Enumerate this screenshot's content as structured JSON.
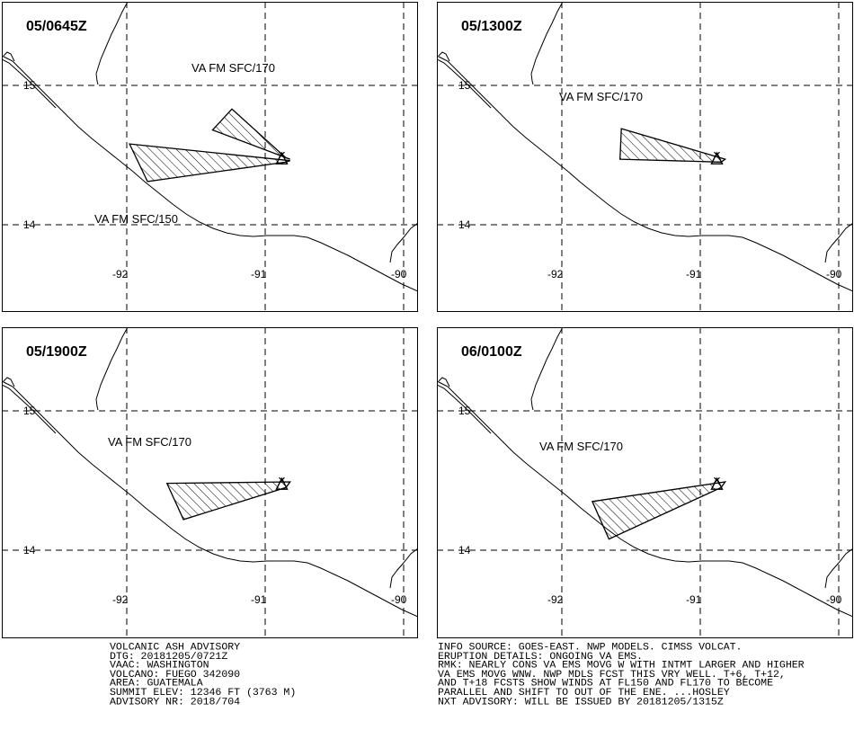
{
  "panels": [
    {
      "time_label": "05/0645Z",
      "labels": [
        "VA FM SFC/170",
        "VA FM SFC/150"
      ],
      "polygons": [
        [
          [
            -91.98,
            14.58
          ],
          [
            -91.85,
            14.31
          ],
          [
            -90.85,
            14.45
          ],
          [
            -90.82,
            14.46
          ]
        ],
        [
          [
            -91.38,
            14.68
          ],
          [
            -91.24,
            14.83
          ],
          [
            -90.85,
            14.48
          ],
          [
            -90.82,
            14.47
          ]
        ]
      ]
    },
    {
      "time_label": "05/1300Z",
      "labels": [
        "VA FM SFC/170"
      ],
      "polygons": [
        [
          [
            -91.57,
            14.69
          ],
          [
            -91.58,
            14.47
          ],
          [
            -90.85,
            14.45
          ],
          [
            -90.82,
            14.47
          ]
        ]
      ]
    },
    {
      "time_label": "05/1900Z",
      "labels": [
        "VA FM SFC/170"
      ],
      "polygons": [
        [
          [
            -91.71,
            14.48
          ],
          [
            -91.59,
            14.22
          ],
          [
            -90.85,
            14.45
          ],
          [
            -90.82,
            14.49
          ]
        ]
      ]
    },
    {
      "time_label": "06/0100Z",
      "labels": [
        "VA FM SFC/170"
      ],
      "polygons": [
        [
          [
            -91.78,
            14.35
          ],
          [
            -91.66,
            14.08
          ],
          [
            -90.85,
            14.45
          ],
          [
            -90.82,
            14.49
          ]
        ]
      ]
    }
  ],
  "map": {
    "lat_ticks": [
      "15",
      "14"
    ],
    "lat_values": [
      15,
      14
    ],
    "lon_ticks": [
      "-92",
      "-91",
      "-90"
    ],
    "lon_values": [
      -92,
      -91,
      -90
    ],
    "volcano_lon": -90.88,
    "volcano_lat": 14.47,
    "volcano_symbol": "triangle-icon"
  },
  "advisory_left": [
    "VOLCANIC ASH ADVISORY",
    "DTG: 20181205/0721Z",
    "VAAC: WASHINGTON",
    "VOLCANO: FUEGO 342090",
    "AREA: GUATEMALA",
    "SUMMIT ELEV: 12346 FT (3763 M)",
    "ADVISORY NR: 2018/704"
  ],
  "advisory_right": [
    "INFO SOURCE: GOES-EAST. NWP MODELS. CIMSS VOLCAT.",
    "ERUPTION DETAILS: ONGOING VA EMS.",
    "RMK: NEARLY CONS VA EMS MOVG W WITH INTMT LARGER AND HIGHER",
    "VA EMS MOVG WNW. NWP MDLS FCST THIS VRY WELL. T+6, T+12,",
    "AND T+18 FCSTS SHOW WINDS AT FL150 AND FL170 TO BECOME",
    "PARALLEL AND SHIFT TO OUT OF THE ENE. ...HOSLEY",
    "NXT ADVISORY: WILL BE ISSUED BY 20181205/1315Z"
  ]
}
